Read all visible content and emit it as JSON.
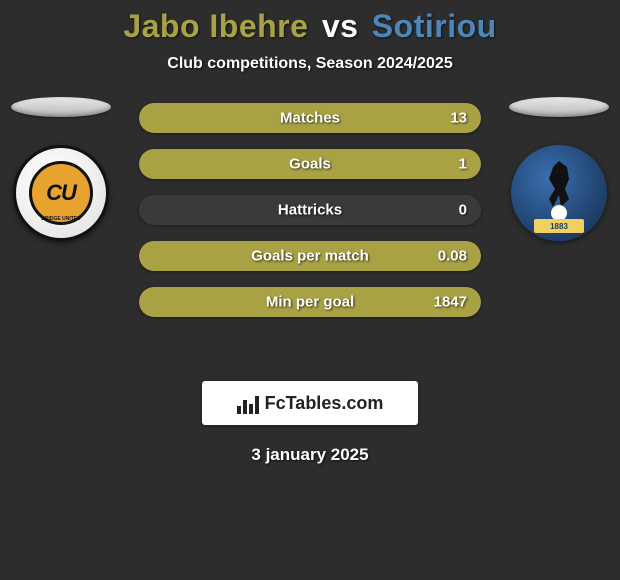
{
  "title": {
    "player1": "Jabo Ibehre",
    "vs": "vs",
    "player2": "Sotiriou",
    "colors": {
      "p1": "#a9a245",
      "vs": "#ffffff",
      "p2": "#4d87b9"
    }
  },
  "subtitle": "Club competitions, Season 2024/2025",
  "accent_left": "#a9a245",
  "accent_right": "#4d87b9",
  "team_left": {
    "short": "CU",
    "band": "BRIDGE UNITED"
  },
  "team_right": {
    "year": "1883"
  },
  "bars": [
    {
      "label": "Matches",
      "left": "",
      "right": "13",
      "left_pct": 0,
      "right_pct": 100
    },
    {
      "label": "Goals",
      "left": "",
      "right": "1",
      "left_pct": 0,
      "right_pct": 100
    },
    {
      "label": "Hattricks",
      "left": "",
      "right": "0",
      "left_pct": 0,
      "right_pct": 0
    },
    {
      "label": "Goals per match",
      "left": "",
      "right": "0.08",
      "left_pct": 0,
      "right_pct": 100
    },
    {
      "label": "Min per goal",
      "left": "",
      "right": "1847",
      "left_pct": 0,
      "right_pct": 100
    }
  ],
  "brand": "FcTables.com",
  "date": "3 january 2025"
}
